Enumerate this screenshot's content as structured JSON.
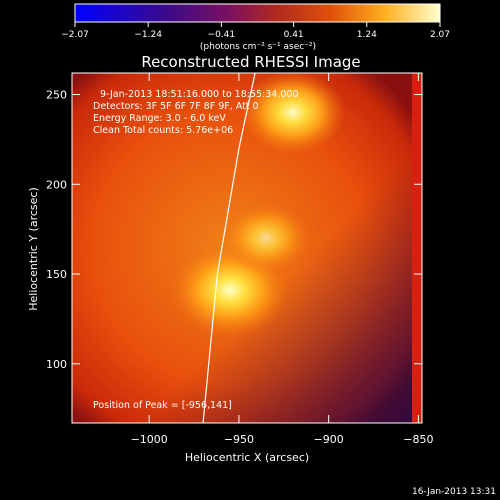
{
  "chart_data": {
    "type": "heatmap",
    "title": "Reconstructed RHESSI Image",
    "xlabel": "Heliocentric X (arcsec)",
    "ylabel": "Heliocentric Y (arcsec)",
    "xlim": [
      -1043,
      -848
    ],
    "ylim": [
      67,
      262
    ],
    "xticks": [
      -1000,
      -950,
      -900,
      -850
    ],
    "yticks": [
      100,
      150,
      200,
      250
    ],
    "xtick_labels": [
      "−1000",
      "−950",
      "−900",
      "−850"
    ],
    "ytick_labels": [
      "100",
      "150",
      "200",
      "250"
    ],
    "colorbar": {
      "range": [
        -2.07,
        2.07
      ],
      "ticks": [
        -2.07,
        -1.24,
        -0.41,
        0.41,
        1.24,
        2.07
      ],
      "tick_labels": [
        "−2.07",
        "−1.24",
        "−0.41",
        "0.41",
        "1.24",
        "2.07"
      ],
      "unit_label": "(photons cm⁻² s⁻¹ asec⁻²)",
      "colormap": "hot"
    },
    "sources": [
      {
        "x": -955,
        "y": 141,
        "intensity": 2.07
      },
      {
        "x": -920,
        "y": 240,
        "intensity": 1.6
      },
      {
        "x": -935,
        "y": 170,
        "intensity": 1.1
      }
    ],
    "limb": [
      [
        -970,
        67
      ],
      [
        -962,
        150
      ],
      [
        -950,
        220
      ],
      [
        -941,
        262
      ]
    ],
    "annotations": {
      "time_range": "9-Jan-2013 18:51:16.000 to 18:55:34.000",
      "detectors": "Detectors: 3F 5F 6F 7F 8F 9F, Att 0",
      "energy": "Energy Range: 3.0 - 6.0 keV",
      "clean": "Clean    Total counts: 5.76e+06",
      "peak": "Position of Peak = [-956,141]"
    },
    "footer_date": "16-Jan-2013 13:31"
  }
}
